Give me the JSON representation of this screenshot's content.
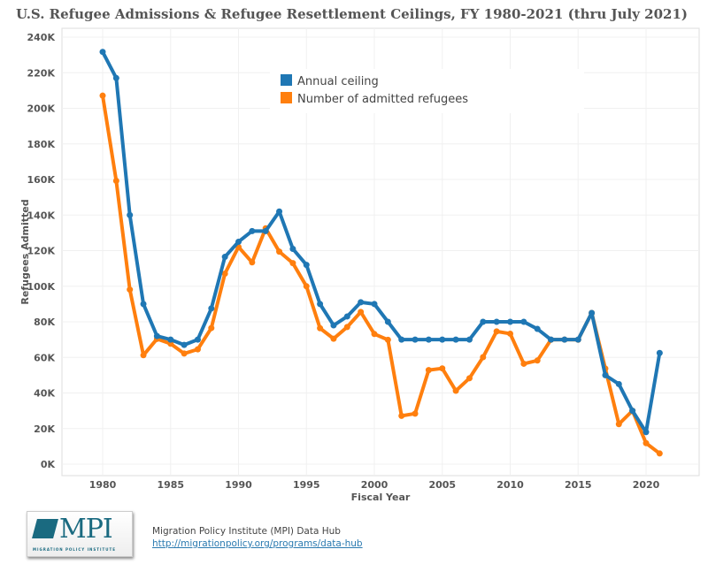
{
  "chart_data": {
    "type": "line",
    "title": "U.S. Refugee Admissions & Refugee Resettlement Ceilings, FY 1980-2021 (thru July 2021)",
    "xlabel": "Fiscal Year",
    "ylabel": "Refugees Admitted",
    "xlim": [
      1975,
      2024
    ],
    "ylim": [
      0,
      240000
    ],
    "x_ticks": [
      1980,
      1985,
      1990,
      1995,
      2000,
      2005,
      2010,
      2015,
      2020
    ],
    "y_ticks": [
      0,
      20000,
      40000,
      60000,
      80000,
      100000,
      120000,
      140000,
      160000,
      180000,
      200000,
      220000,
      240000
    ],
    "y_tick_labels": [
      "0K",
      "20K",
      "40K",
      "60K",
      "80K",
      "100K",
      "120K",
      "140K",
      "160K",
      "180K",
      "200K",
      "220K",
      "240K"
    ],
    "grid": true,
    "legend_position": "top-center",
    "x": [
      1980,
      1981,
      1982,
      1983,
      1984,
      1985,
      1986,
      1987,
      1988,
      1989,
      1990,
      1991,
      1992,
      1993,
      1994,
      1995,
      1996,
      1997,
      1998,
      1999,
      2000,
      2001,
      2002,
      2003,
      2004,
      2005,
      2006,
      2007,
      2008,
      2009,
      2010,
      2011,
      2012,
      2013,
      2014,
      2015,
      2016,
      2017,
      2018,
      2019,
      2020,
      2021
    ],
    "series": [
      {
        "name": "Annual ceiling",
        "color": "#1f77b4",
        "values": [
          231700,
          217000,
          140000,
          90000,
          72000,
          70000,
          67000,
          70000,
          87500,
          116500,
          125000,
          131000,
          131000,
          142000,
          121000,
          112000,
          90000,
          78000,
          83000,
          91000,
          90000,
          80000,
          70000,
          70000,
          70000,
          70000,
          70000,
          70000,
          80000,
          80000,
          80000,
          80000,
          76000,
          70000,
          70000,
          70000,
          85000,
          50000,
          45000,
          30000,
          18000,
          62500
        ]
      },
      {
        "name": "Number of admitted refugees",
        "color": "#ff7f0e",
        "values": [
          207116,
          159252,
          98096,
          61218,
          70393,
          67704,
          62146,
          64528,
          76483,
          107070,
          122066,
          113389,
          132531,
          119448,
          112981,
          99974,
          76403,
          70488,
          77080,
          85525,
          73147,
          69886,
          27131,
          28403,
          52873,
          53813,
          41223,
          48282,
          60107,
          74602,
          73311,
          56424,
          58238,
          69926,
          69987,
          69933,
          84994,
          53716,
          22491,
          30000,
          11814,
          6000
        ]
      }
    ]
  },
  "footer": {
    "source": "Migration Policy Institute (MPI) Data Hub",
    "link": "http://migrationpolicy.org/programs/data-hub",
    "logo_text": "MPI",
    "logo_subtext": "MIGRATION POLICY INSTITUTE"
  }
}
